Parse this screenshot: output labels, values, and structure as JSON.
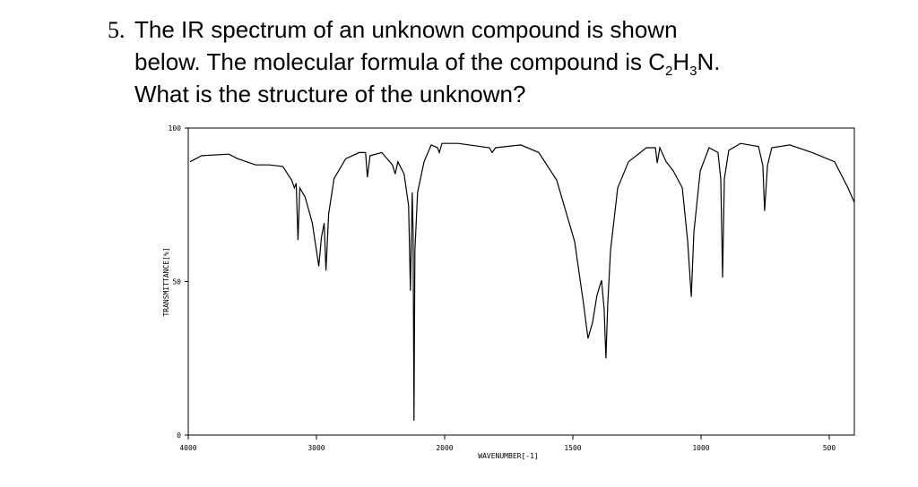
{
  "question": {
    "number": "5.",
    "line1": "The IR spectrum of an unknown compound is shown",
    "line2": [
      "below. The molecular formula of the compound is C",
      "2",
      "H",
      "3",
      "N."
    ],
    "line3": "What is the structure of the unknown?"
  },
  "chart_data": {
    "type": "line",
    "xlabel": "WAVENUMBER[-1]",
    "ylabel": "TRANSMITTANCE[%]",
    "xlim": [
      4000,
      400
    ],
    "xticks": [
      4000,
      3000,
      2000,
      1500,
      1000,
      500
    ],
    "ylim": [
      0,
      100
    ],
    "yticks": [
      100,
      50,
      0
    ],
    "color": "#000000",
    "series": [
      {
        "x": [
          3986,
          3895,
          3684,
          3614,
          3474,
          3368,
          3263,
          3193,
          3172,
          3158,
          3144,
          3130,
          3088,
          3032,
          2982,
          2961,
          2940,
          2926,
          2905,
          2863,
          2772,
          2667,
          2617,
          2603,
          2582,
          2491,
          2407,
          2386,
          2365,
          2316,
          2281,
          2267,
          2253,
          2246,
          2239,
          2232,
          2211,
          2161,
          2105,
          2056,
          2042,
          2021,
          1948,
          1825,
          1815,
          1801,
          1703,
          1633,
          1563,
          1493,
          1458,
          1441,
          1423,
          1406,
          1388,
          1378,
          1371,
          1364,
          1353,
          1325,
          1283,
          1213,
          1178,
          1171,
          1161,
          1136,
          1108,
          1073,
          1052,
          1038,
          1028,
          1003,
          969,
          934,
          923,
          916,
          909,
          892,
          846,
          776,
          759,
          752,
          741,
          724,
          654,
          566,
          479,
          427,
          402
        ],
        "values": [
          89,
          91,
          91.5,
          90,
          88,
          88,
          87.5,
          83,
          80.5,
          82,
          63.5,
          80.5,
          77.5,
          69,
          55,
          64.5,
          69,
          53.6,
          72,
          83.5,
          90,
          92,
          92,
          84,
          91,
          92,
          88,
          85,
          89,
          85,
          74.6,
          47,
          79,
          66,
          4.7,
          60,
          79,
          89,
          94.5,
          93.6,
          92,
          95,
          95,
          93.6,
          92,
          93.6,
          94.5,
          92,
          83,
          63,
          42.6,
          31.5,
          36.7,
          45.5,
          50.4,
          41,
          25,
          42.6,
          60,
          80.5,
          89,
          93.6,
          93.6,
          88.6,
          93.6,
          89,
          86,
          80.5,
          63,
          45,
          66,
          86,
          93.6,
          92,
          83.4,
          51.3,
          83.4,
          92.7,
          95,
          94,
          87.8,
          73,
          87.8,
          93.6,
          94.5,
          92,
          89,
          80.5,
          75.8
        ]
      }
    ]
  }
}
